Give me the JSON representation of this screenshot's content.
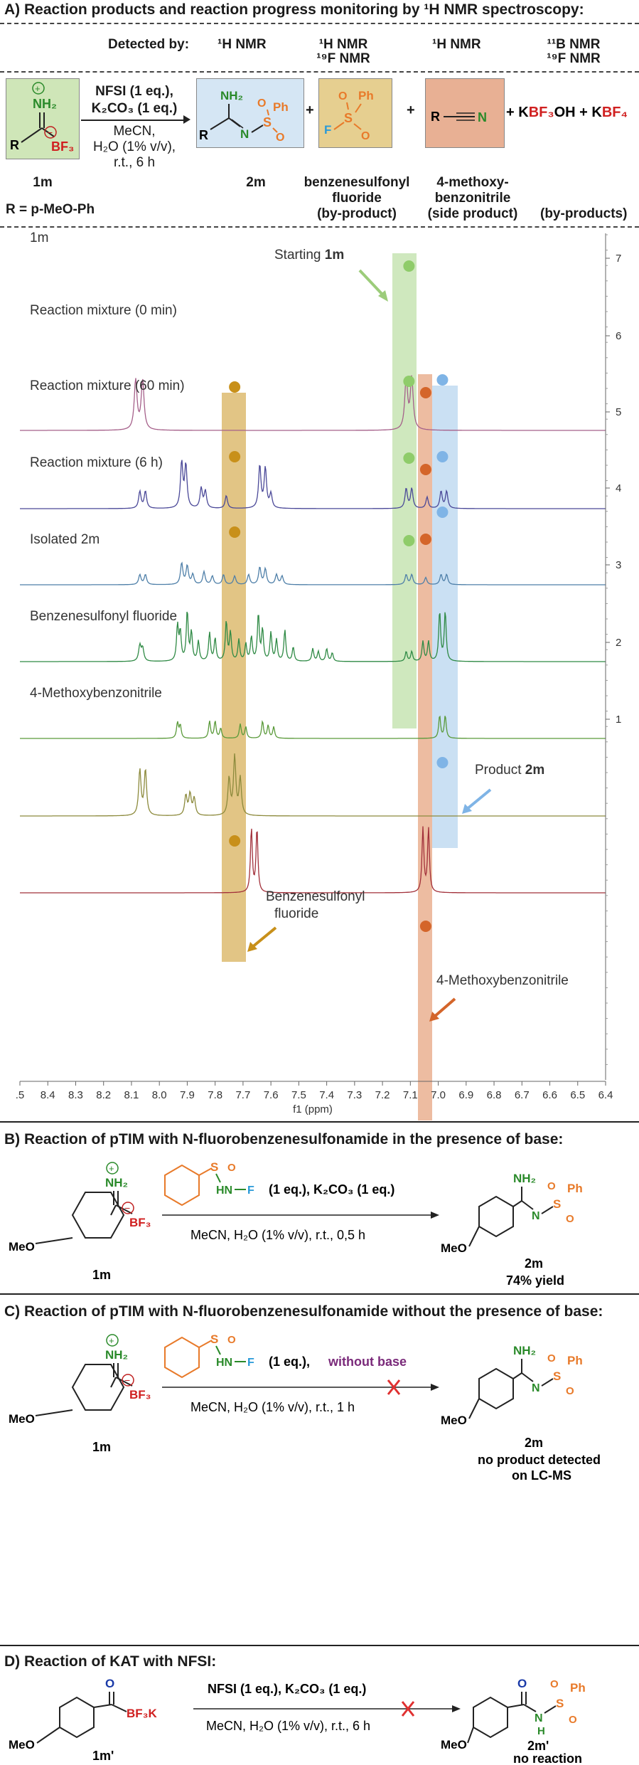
{
  "section_a": {
    "title": "A) Reaction products and reaction progress monitoring by ¹H NMR spectroscopy:",
    "detected_by": "Detected by:",
    "detect_cols": [
      "¹H NMR",
      "¹H NMR",
      "¹⁹F NMR",
      "¹H NMR",
      "¹¹B NMR",
      "¹⁹F NMR"
    ],
    "reagents_line1": "NFSI (1 eq.),",
    "reagents_line2": "K₂CO₃ (1 eq.)",
    "conditions": [
      "MeCN,",
      "H₂O (1% v/v),",
      "r.t., 6 h"
    ],
    "compounds": {
      "sm": "1m",
      "product": "2m",
      "byproduct": [
        "benzenesulfonyl",
        "fluoride",
        "(by-product)"
      ],
      "side": [
        "4-methoxy-",
        "benzonitrile",
        "(side product)"
      ],
      "byproducts": "(by-products)"
    },
    "r_def": "R = p-MeO-Ph",
    "plus": "+",
    "salts": [
      "+ KBF₃OH + KBF₄"
    ],
    "fragments": {
      "nh2": "NH₂",
      "bf3": "BF₃",
      "r": "R",
      "ph": "Ph",
      "s": "S",
      "o": "O",
      "n": "N",
      "f": "F",
      "plus_sign": "⊕",
      "minus_sign": "⊖"
    }
  },
  "spectrum": {
    "traces": [
      {
        "label": "1m",
        "color": "#a5608a"
      },
      {
        "label": "Reaction mixture (0 min)",
        "color": "#4a4898"
      },
      {
        "label": "Reaction mixture (60 min)",
        "color": "#4e7fa8"
      },
      {
        "label": "Reaction mixture (6 h)",
        "color": "#2f8a45"
      },
      {
        "label": "Isolated 2m",
        "color": "#5a9a3a"
      },
      {
        "label": "Benzenesulfonyl fluoride",
        "color": "#8c8a3c"
      },
      {
        "label": "4-Methoxybenzonitrile",
        "color": "#a2303a"
      }
    ],
    "annotations": {
      "starting": "Starting 1m",
      "product": "Product 2m",
      "bsf": [
        "Benzenesulfonyl",
        "fluoride"
      ],
      "mbn": "4-Methoxybenzonitrile"
    },
    "x_ticks": [
      ".5",
      "8.4",
      "8.3",
      "8.2",
      "8.1",
      "8.0",
      "7.9",
      "7.8",
      "7.7",
      "7.6",
      "7.5",
      "7.4",
      "7.3",
      "7.2",
      "7.1",
      "7.0",
      "6.9",
      "6.8",
      "6.7",
      "6.6",
      "6.5",
      "6.4"
    ],
    "x_label": "f1 (ppm)",
    "y_ticks": [
      "7",
      "6",
      "5",
      "4",
      "3",
      "2",
      "1"
    ],
    "highlight_colors": {
      "green": "#bfe0a8",
      "orange": "#e8ab8a",
      "blue": "#b8d6ef",
      "gold": "#d8b25c"
    },
    "dot_colors": {
      "green": "#8fcc6a",
      "orange": "#d4652a",
      "blue": "#7fb4e6",
      "gold": "#c8901a"
    }
  },
  "section_b": {
    "title": "B) Reaction of pTIM with N-fluorobenzenesulfonamide in the presence of base:",
    "reagent": "(1 eq.), K₂CO₃  (1 eq.)",
    "conditions": "MeCN, H₂O (1% v/v),  r.t., 0,5 h",
    "sm": "1m",
    "product": "2m",
    "yield": "74% yield"
  },
  "section_c": {
    "title": "C) Reaction of pTIM with N-fluorobenzenesulfonamide without the presence of base:",
    "reagent": "(1 eq.),",
    "without": "without base",
    "conditions": "MeCN, H₂O (1% v/v),  r.t., 1 h",
    "sm": "1m",
    "product": "2m",
    "result": [
      "no product detected",
      "on LC-MS"
    ]
  },
  "section_d": {
    "title": "D) Reaction of KAT with NFSI:",
    "reagent": "NFSI (1 eq.), K₂CO₃ (1 eq.)",
    "conditions": "MeCN, H₂O (1% v/v), r.t., 6 h",
    "sm": "1m'",
    "product": "2m'",
    "result": "no reaction"
  },
  "struct": {
    "meo": "MeO",
    "hn": "HN",
    "nh": "H",
    "bf3k": "BF₃K",
    "cross": "✕"
  }
}
